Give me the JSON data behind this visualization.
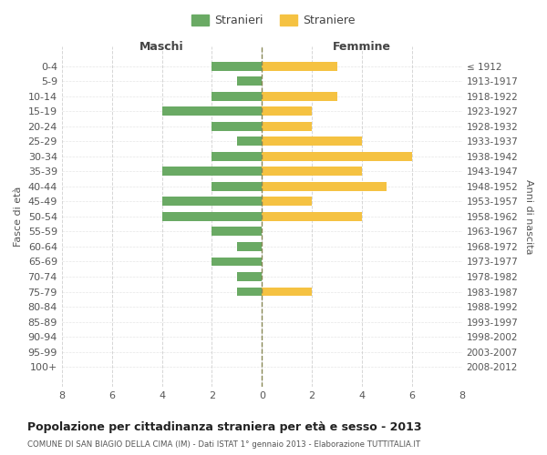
{
  "age_groups": [
    "0-4",
    "5-9",
    "10-14",
    "15-19",
    "20-24",
    "25-29",
    "30-34",
    "35-39",
    "40-44",
    "45-49",
    "50-54",
    "55-59",
    "60-64",
    "65-69",
    "70-74",
    "75-79",
    "80-84",
    "85-89",
    "90-94",
    "95-99",
    "100+"
  ],
  "birth_years": [
    "2008-2012",
    "2003-2007",
    "1998-2002",
    "1993-1997",
    "1988-1992",
    "1983-1987",
    "1978-1982",
    "1973-1977",
    "1968-1972",
    "1963-1967",
    "1958-1962",
    "1953-1957",
    "1948-1952",
    "1943-1947",
    "1938-1942",
    "1933-1937",
    "1928-1932",
    "1923-1927",
    "1918-1922",
    "1913-1917",
    "≤ 1912"
  ],
  "males": [
    2,
    1,
    2,
    4,
    2,
    1,
    2,
    4,
    2,
    4,
    4,
    2,
    1,
    2,
    1,
    1,
    0,
    0,
    0,
    0,
    0
  ],
  "females": [
    3,
    0,
    3,
    2,
    2,
    4,
    6,
    4,
    5,
    2,
    4,
    0,
    0,
    0,
    0,
    2,
    0,
    0,
    0,
    0,
    0
  ],
  "male_color": "#6aaa64",
  "female_color": "#f5c242",
  "title": "Popolazione per cittadinanza straniera per età e sesso - 2013",
  "subtitle": "COMUNE DI SAN BIAGIO DELLA CIMA (IM) - Dati ISTAT 1° gennaio 2013 - Elaborazione TUTTITALIA.IT",
  "xlabel_left": "Maschi",
  "xlabel_right": "Femmine",
  "ylabel_left": "Fasce di età",
  "ylabel_right": "Anni di nascita",
  "legend_male": "Stranieri",
  "legend_female": "Straniere",
  "xlim": 8,
  "background_color": "#ffffff",
  "grid_color": "#cccccc"
}
